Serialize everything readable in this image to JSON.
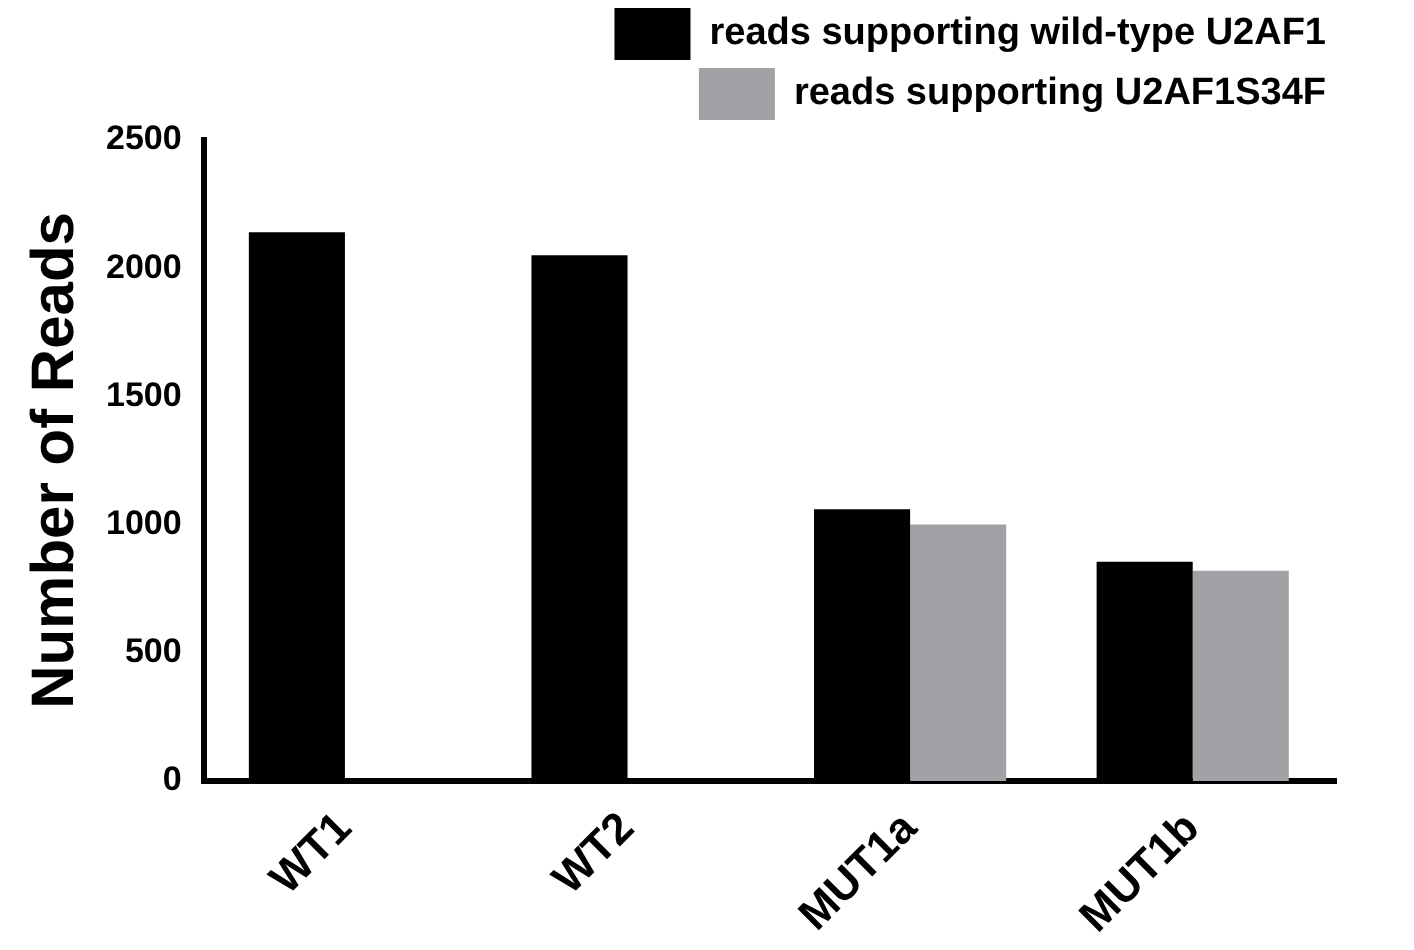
{
  "chart_data": {
    "type": "bar",
    "ylabel": "Number of Reads",
    "categories": [
      "WT1",
      "WT2",
      "MUT1a",
      "MUT1b"
    ],
    "series": [
      {
        "name": "reads supporting wild-type U2AF1",
        "color": "#000000",
        "values": [
          2140,
          2050,
          1060,
          855
        ]
      },
      {
        "name": "reads supporting U2AF1S34F",
        "color": "#a2a2a6",
        "values": [
          null,
          null,
          1000,
          820
        ]
      }
    ],
    "ylim": [
      0,
      2500
    ],
    "yticks": [
      0,
      500,
      1000,
      1500,
      2000,
      2500
    ],
    "grid": false,
    "legend": "top right"
  }
}
